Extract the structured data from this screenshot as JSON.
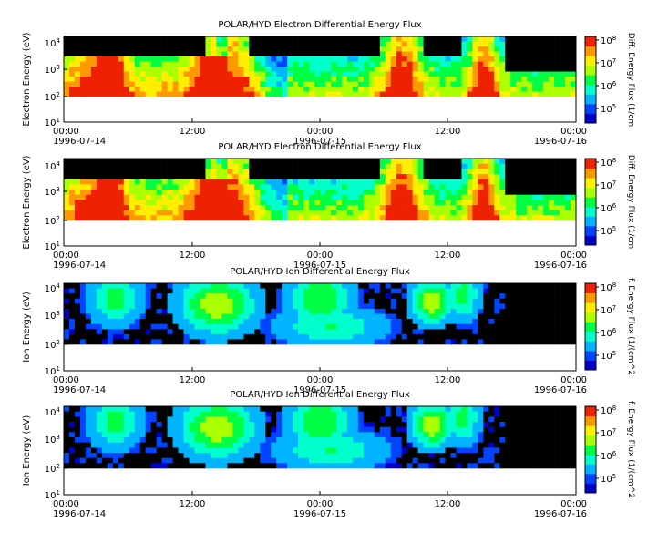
{
  "chart_data": [
    {
      "type": "heatmap",
      "title": "POLAR/HYD  Electron Differential Energy Flux",
      "ylabel": "Electron Energy (eV)",
      "colorbar_label": "Diff. Energy Flux (1/cm",
      "y_scale": "log",
      "ylim": [
        10,
        20000
      ],
      "y_ticks": [
        "10^1",
        "10^2",
        "10^3",
        "10^4"
      ],
      "colorbar_ticks": [
        "10^5",
        "10^6",
        "10^7",
        "10^8"
      ],
      "x_ticks": [
        {
          "time": "00:00",
          "date": "1996-07-14"
        },
        {
          "time": "12:00",
          "date": ""
        },
        {
          "time": "00:00",
          "date": "1996-07-15"
        },
        {
          "time": "12:00",
          "date": ""
        },
        {
          "time": "00:00",
          "date": "1996-07-16"
        }
      ]
    },
    {
      "type": "heatmap",
      "title": "POLAR/HYD  Electron Differential Energy Flux",
      "ylabel": "Electron Energy (eV)",
      "colorbar_label": "Diff. Energy Flux (1/cm",
      "y_scale": "log",
      "ylim": [
        10,
        20000
      ],
      "y_ticks": [
        "10^1",
        "10^2",
        "10^3",
        "10^4"
      ],
      "colorbar_ticks": [
        "10^5",
        "10^6",
        "10^7",
        "10^8"
      ],
      "x_ticks": [
        {
          "time": "00:00",
          "date": "1996-07-14"
        },
        {
          "time": "12:00",
          "date": ""
        },
        {
          "time": "00:00",
          "date": "1996-07-15"
        },
        {
          "time": "12:00",
          "date": ""
        },
        {
          "time": "00:00",
          "date": "1996-07-16"
        }
      ]
    },
    {
      "type": "heatmap",
      "title": "POLAR/HYD  Ion Differential Energy Flux",
      "ylabel": "Ion Energy (eV)",
      "colorbar_label": "f. Energy Flux (1/(cm^2",
      "y_scale": "log",
      "ylim": [
        10,
        20000
      ],
      "y_ticks": [
        "10^1",
        "10^2",
        "10^3",
        "10^4"
      ],
      "colorbar_ticks": [
        "10^5",
        "10^6",
        "10^7",
        "10^8"
      ],
      "x_ticks": [
        {
          "time": "00:00",
          "date": "1996-07-14"
        },
        {
          "time": "12:00",
          "date": ""
        },
        {
          "time": "00:00",
          "date": "1996-07-15"
        },
        {
          "time": "12:00",
          "date": ""
        },
        {
          "time": "00:00",
          "date": "1996-07-16"
        }
      ]
    },
    {
      "type": "heatmap",
      "title": "POLAR/HYD  Ion Differential Energy Flux",
      "ylabel": "Ion Energy (eV)",
      "colorbar_label": "f. Energy Flux (1/(cm^2",
      "y_scale": "log",
      "ylim": [
        10,
        20000
      ],
      "y_ticks": [
        "10^1",
        "10^2",
        "10^3",
        "10^4"
      ],
      "colorbar_ticks": [
        "10^5",
        "10^6",
        "10^7",
        "10^8"
      ],
      "x_ticks": [
        {
          "time": "00:00",
          "date": "1996-07-14"
        },
        {
          "time": "12:00",
          "date": ""
        },
        {
          "time": "00:00",
          "date": "1996-07-15"
        },
        {
          "time": "12:00",
          "date": ""
        },
        {
          "time": "00:00",
          "date": "1996-07-16"
        }
      ]
    }
  ],
  "colors": {
    "colormap": [
      "#0000cc",
      "#0044ff",
      "#00b4ff",
      "#00ffcc",
      "#00ff44",
      "#aaff00",
      "#ffee00",
      "#ff9900",
      "#ee2200"
    ],
    "background": "#000000",
    "axis": "#000000"
  }
}
